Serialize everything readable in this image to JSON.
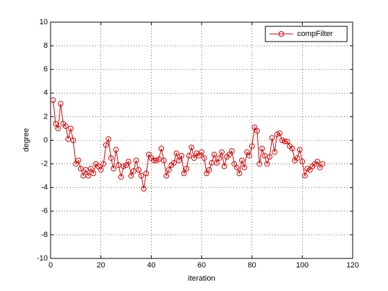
{
  "chart_data": {
    "type": "line",
    "xlabel": "iteration",
    "ylabel": "degree",
    "xlim": [
      0,
      120
    ],
    "ylim": [
      -10,
      10
    ],
    "xticks": [
      0,
      20,
      40,
      60,
      80,
      100,
      120
    ],
    "yticks": [
      -10,
      -8,
      -6,
      -4,
      -2,
      0,
      2,
      4,
      6,
      8,
      10
    ],
    "grid": true,
    "legend_position": "upper right",
    "x": [
      1,
      2,
      3,
      4,
      5,
      6,
      7,
      8,
      9,
      10,
      11,
      12,
      13,
      14,
      15,
      16,
      17,
      18,
      19,
      20,
      21,
      22,
      23,
      24,
      25,
      26,
      27,
      28,
      29,
      30,
      31,
      32,
      33,
      34,
      35,
      36,
      37,
      38,
      39,
      40,
      41,
      42,
      43,
      44,
      45,
      46,
      47,
      48,
      49,
      50,
      51,
      52,
      53,
      54,
      55,
      56,
      57,
      58,
      59,
      60,
      61,
      62,
      63,
      64,
      65,
      66,
      67,
      68,
      69,
      70,
      71,
      72,
      73,
      74,
      75,
      76,
      77,
      78,
      79,
      80,
      81,
      82,
      83,
      84,
      85,
      86,
      87,
      88,
      89,
      90,
      91,
      92,
      93,
      94,
      95,
      96,
      97,
      98,
      99,
      100,
      101,
      102,
      103,
      104,
      105,
      106,
      107,
      108
    ],
    "series": [
      {
        "name": "compFilter",
        "color": "#d40000",
        "values": [
          3.4,
          1.4,
          1.0,
          3.1,
          1.4,
          1.2,
          0.1,
          1.0,
          0.0,
          -2.0,
          -1.7,
          -2.4,
          -3.0,
          -2.5,
          -3.0,
          -2.4,
          -2.8,
          -2.0,
          -2.2,
          -2.5,
          -2.0,
          -0.4,
          0.1,
          -1.5,
          -2.4,
          -0.8,
          -2.1,
          -3.1,
          -2.2,
          -2.1,
          -1.8,
          -3.0,
          -2.6,
          -1.7,
          -2.5,
          -3.0,
          -4.1,
          -2.8,
          -1.2,
          -1.5,
          -1.7,
          -1.7,
          -1.6,
          -0.7,
          -1.7,
          -3.0,
          -2.5,
          -2.1,
          -1.9,
          -1.1,
          -1.7,
          -1.3,
          -2.8,
          -2.4,
          -1.3,
          -0.6,
          -1.5,
          -1.1,
          -1.3,
          -1.0,
          -1.5,
          -2.8,
          -2.5,
          -1.9,
          -1.2,
          -1.9,
          -1.5,
          -1.0,
          -2.2,
          -1.4,
          -1.2,
          -0.9,
          -2.0,
          -2.3,
          -2.8,
          -1.7,
          -2.3,
          -1.0,
          -1.3,
          -0.5,
          1.1,
          0.8,
          -2.0,
          -0.7,
          -1.3,
          -2.0,
          -1.4,
          0.2,
          -1.0,
          0.5,
          0.6,
          0.0,
          -0.1,
          -0.1,
          -0.5,
          -0.7,
          -1.7,
          -1.5,
          -0.8,
          -1.8,
          -3.0,
          -2.4,
          -2.5,
          -2.2,
          -2.0,
          -1.8,
          -2.3,
          -2.0
        ]
      }
    ]
  }
}
